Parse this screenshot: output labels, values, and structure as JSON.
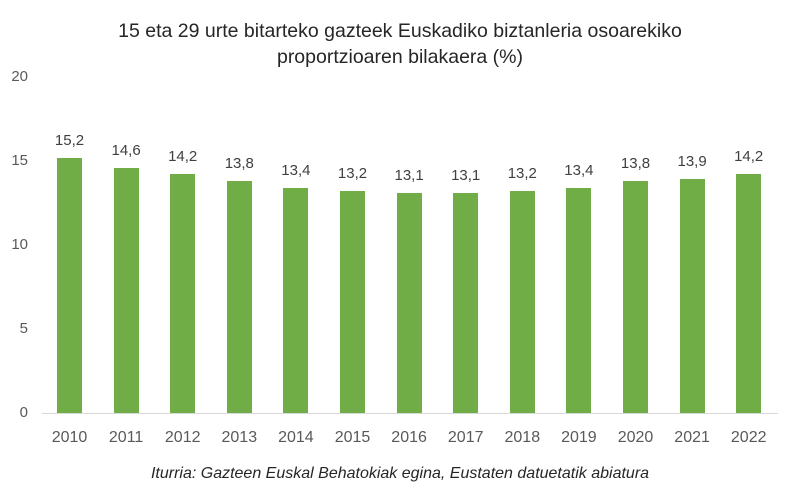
{
  "chart_data": {
    "type": "bar",
    "title": "15 eta 29 urte bitarteko gazteek Euskadiko biztanleria osoarekiko proportzioaren bilakaera (%)",
    "title_lines": [
      "15 eta 29 urte bitarteko gazteek Euskadiko biztanleria osoarekiko",
      "proportzioaren bilakaera (%)"
    ],
    "categories": [
      "2010",
      "2011",
      "2012",
      "2013",
      "2014",
      "2015",
      "2016",
      "2017",
      "2018",
      "2019",
      "2020",
      "2021",
      "2022"
    ],
    "values": [
      15.2,
      14.6,
      14.2,
      13.8,
      13.4,
      13.2,
      13.1,
      13.1,
      13.2,
      13.4,
      13.8,
      13.9,
      14.2
    ],
    "value_labels": [
      "15,2",
      "14,6",
      "14,2",
      "13,8",
      "13,4",
      "13,2",
      "13,1",
      "13,1",
      "13,2",
      "13,4",
      "13,8",
      "13,9",
      "14,2"
    ],
    "xlabel": "",
    "ylabel": "",
    "ylim": [
      0,
      20
    ],
    "yticks": [
      "0",
      "5",
      "10",
      "15",
      "20"
    ],
    "grid": false,
    "legend": null,
    "bar_color": "#70AD47",
    "source": "Iturria: Gazteen Euskal Behatokiak egina, Eustaten datuetatik abiatura"
  }
}
